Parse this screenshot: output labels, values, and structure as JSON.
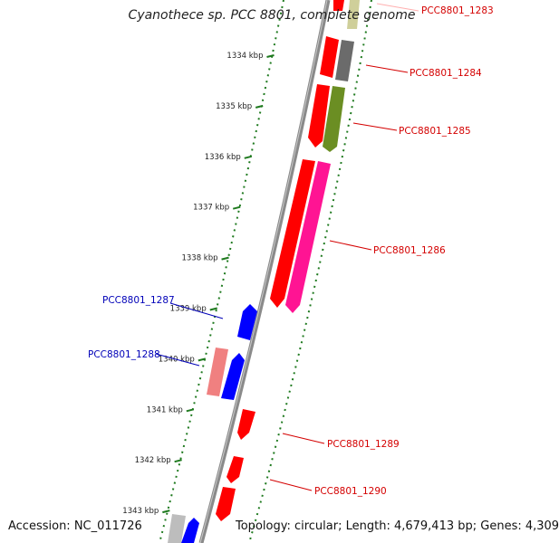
{
  "title": "Cyanothece sp. PCC 8801, complete genome",
  "footer": {
    "accession": "Accession: NC_011726",
    "summary": "Topology: circular; Length: 4,679,413 bp; Genes: 4,309"
  },
  "colors": {
    "backbone": "#8a8a8a",
    "tick": "#1f7a1f",
    "plus_label": "#d40000",
    "minus_label": "#0000b8"
  },
  "axis_ticks": [
    {
      "label": "1334 kbp",
      "kbp": 1334
    },
    {
      "label": "1335 kbp",
      "kbp": 1335
    },
    {
      "label": "1336 kbp",
      "kbp": 1336
    },
    {
      "label": "1337 kbp",
      "kbp": 1337
    },
    {
      "label": "1338 kbp",
      "kbp": 1338
    },
    {
      "label": "1339 kbp",
      "kbp": 1339
    },
    {
      "label": "1340 kbp",
      "kbp": 1340
    },
    {
      "label": "1341 kbp",
      "kbp": 1341
    },
    {
      "label": "1342 kbp",
      "kbp": 1342
    },
    {
      "label": "1343 kbp",
      "kbp": 1343
    }
  ],
  "gene_labels": [
    {
      "text": "PCC8801_1283",
      "strand": "plus"
    },
    {
      "text": "PCC8801_1284",
      "strand": "plus"
    },
    {
      "text": "PCC8801_1285",
      "strand": "plus"
    },
    {
      "text": "PCC8801_1286",
      "strand": "plus"
    },
    {
      "text": "PCC8801_1287",
      "strand": "minus"
    },
    {
      "text": "PCC8801_1288",
      "strand": "minus"
    },
    {
      "text": "PCC8801_1289",
      "strand": "plus"
    },
    {
      "text": "PCC8801_1290",
      "strand": "plus"
    }
  ]
}
